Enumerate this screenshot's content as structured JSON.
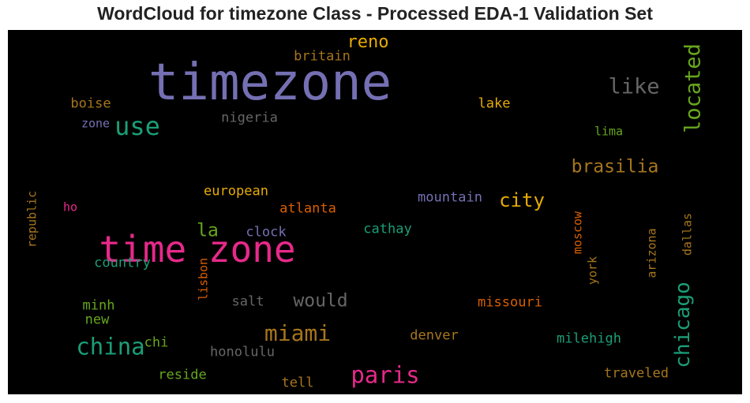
{
  "chart_data": {
    "type": "wordcloud",
    "title": "WordCloud for timezone Class - Processed EDA-1 Validation Set",
    "background": "#000000",
    "words": [
      {
        "text": "timezone",
        "weight": 100,
        "color": "#7570b3",
        "orientation": "horizontal"
      },
      {
        "text": "time zone",
        "weight": 72,
        "color": "#e7298a",
        "orientation": "horizontal"
      },
      {
        "text": "use",
        "weight": 50,
        "color": "#1b9e77",
        "orientation": "horizontal"
      },
      {
        "text": "china",
        "weight": 46,
        "color": "#1b9e77",
        "orientation": "horizontal"
      },
      {
        "text": "paris",
        "weight": 46,
        "color": "#e7298a",
        "orientation": "horizontal"
      },
      {
        "text": "miami",
        "weight": 44,
        "color": "#a6761d",
        "orientation": "horizontal"
      },
      {
        "text": "like",
        "weight": 42,
        "color": "#666666",
        "orientation": "horizontal"
      },
      {
        "text": "located",
        "weight": 42,
        "color": "#66a61e",
        "orientation": "vertical"
      },
      {
        "text": "chicago",
        "weight": 40,
        "color": "#1b9e77",
        "orientation": "vertical"
      },
      {
        "text": "city",
        "weight": 38,
        "color": "#e6ab02",
        "orientation": "horizontal"
      },
      {
        "text": "would",
        "weight": 36,
        "color": "#666666",
        "orientation": "horizontal"
      },
      {
        "text": "brasilia",
        "weight": 36,
        "color": "#a6761d",
        "orientation": "horizontal"
      },
      {
        "text": "la",
        "weight": 36,
        "color": "#66a61e",
        "orientation": "horizontal"
      },
      {
        "text": "reno",
        "weight": 34,
        "color": "#e6ab02",
        "orientation": "horizontal"
      },
      {
        "text": "britain",
        "weight": 26,
        "color": "#a6761d",
        "orientation": "horizontal"
      },
      {
        "text": "boise",
        "weight": 26,
        "color": "#a6761d",
        "orientation": "horizontal"
      },
      {
        "text": "zone",
        "weight": 24,
        "color": "#7570b3",
        "orientation": "horizontal"
      },
      {
        "text": "nigeria",
        "weight": 26,
        "color": "#666666",
        "orientation": "horizontal"
      },
      {
        "text": "lake",
        "weight": 26,
        "color": "#e6ab02",
        "orientation": "horizontal"
      },
      {
        "text": "lima",
        "weight": 24,
        "color": "#66a61e",
        "orientation": "horizontal"
      },
      {
        "text": "european",
        "weight": 26,
        "color": "#e6ab02",
        "orientation": "horizontal"
      },
      {
        "text": "atlanta",
        "weight": 26,
        "color": "#d95f02",
        "orientation": "horizontal"
      },
      {
        "text": "mountain",
        "weight": 26,
        "color": "#7570b3",
        "orientation": "horizontal"
      },
      {
        "text": "republic",
        "weight": 24,
        "color": "#a6761d",
        "orientation": "vertical"
      },
      {
        "text": "ho",
        "weight": 24,
        "color": "#e7298a",
        "orientation": "horizontal"
      },
      {
        "text": "clock",
        "weight": 26,
        "color": "#7570b3",
        "orientation": "horizontal"
      },
      {
        "text": "cathay",
        "weight": 26,
        "color": "#1b9e77",
        "orientation": "horizontal"
      },
      {
        "text": "moscow",
        "weight": 24,
        "color": "#d95f02",
        "orientation": "vertical"
      },
      {
        "text": "arizona",
        "weight": 24,
        "color": "#a6761d",
        "orientation": "vertical"
      },
      {
        "text": "dallas",
        "weight": 24,
        "color": "#a6761d",
        "orientation": "vertical"
      },
      {
        "text": "country",
        "weight": 26,
        "color": "#1b9e77",
        "orientation": "horizontal"
      },
      {
        "text": "lisbon",
        "weight": 24,
        "color": "#d95f02",
        "orientation": "vertical"
      },
      {
        "text": "york",
        "weight": 24,
        "color": "#a6761d",
        "orientation": "vertical"
      },
      {
        "text": "minh",
        "weight": 26,
        "color": "#66a61e",
        "orientation": "horizontal"
      },
      {
        "text": "salt",
        "weight": 26,
        "color": "#666666",
        "orientation": "horizontal"
      },
      {
        "text": "missouri",
        "weight": 26,
        "color": "#d95f02",
        "orientation": "horizontal"
      },
      {
        "text": "new",
        "weight": 26,
        "color": "#66a61e",
        "orientation": "horizontal"
      },
      {
        "text": "denver",
        "weight": 26,
        "color": "#a6761d",
        "orientation": "horizontal"
      },
      {
        "text": "chi",
        "weight": 26,
        "color": "#66a61e",
        "orientation": "horizontal"
      },
      {
        "text": "milehigh",
        "weight": 26,
        "color": "#1b9e77",
        "orientation": "horizontal"
      },
      {
        "text": "honolulu",
        "weight": 26,
        "color": "#666666",
        "orientation": "horizontal"
      },
      {
        "text": "reside",
        "weight": 26,
        "color": "#66a61e",
        "orientation": "horizontal"
      },
      {
        "text": "tell",
        "weight": 26,
        "color": "#a6761d",
        "orientation": "horizontal"
      },
      {
        "text": "traveled",
        "weight": 26,
        "color": "#a6761d",
        "orientation": "horizontal"
      }
    ]
  }
}
